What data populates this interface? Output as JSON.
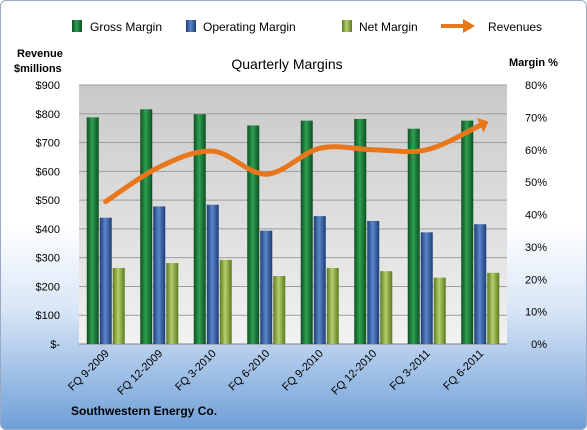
{
  "chart_data": {
    "type": "bar",
    "title": "Quarterly Margins",
    "company": "Southwestern Energy Co.",
    "left_axis_label_line1": "Revenue",
    "left_axis_label_line2": "$millions",
    "right_axis_label": "Margin %",
    "categories": [
      "FQ 9-2009",
      "FQ 12-2009",
      "FQ 3-2010",
      "FQ 6-2010",
      "FQ 9-2010",
      "FQ 12-2010",
      "FQ 3-2011",
      "FQ 6-2011"
    ],
    "left_ylim": [
      0,
      900
    ],
    "left_ticks": [
      0,
      100,
      200,
      300,
      400,
      500,
      600,
      700,
      800,
      900
    ],
    "left_tick_labels": [
      "$-",
      "$100",
      "$200",
      "$300",
      "$400",
      "$500",
      "$600",
      "$700",
      "$800",
      "$900"
    ],
    "right_ylim": [
      0,
      80
    ],
    "right_ticks": [
      0,
      10,
      20,
      30,
      40,
      50,
      60,
      70,
      80
    ],
    "right_tick_labels": [
      "0%",
      "10%",
      "20%",
      "30%",
      "40%",
      "50%",
      "60%",
      "70%",
      "80%"
    ],
    "series": [
      {
        "name": "Gross Margin",
        "axis": "right",
        "kind": "bar",
        "color": "#1f7a3a",
        "values": [
          70,
          72.5,
          71,
          67.5,
          69,
          69.5,
          66.5,
          69
        ]
      },
      {
        "name": "Operating Margin",
        "axis": "right",
        "kind": "bar",
        "color": "#3b64a8",
        "values": [
          39,
          42.5,
          43,
          35,
          39.5,
          38,
          34.5,
          37
        ]
      },
      {
        "name": "Net Margin",
        "axis": "right",
        "kind": "bar",
        "color": "#8fae44",
        "values": [
          23.5,
          25,
          26,
          21,
          23.5,
          22.5,
          20.5,
          22
        ]
      },
      {
        "name": "Revenues",
        "axis": "left",
        "kind": "line",
        "color": "#e8761b",
        "values": [
          495,
          615,
          670,
          590,
          680,
          675,
          675,
          760
        ]
      }
    ],
    "grid": true,
    "legend_position": "top"
  }
}
